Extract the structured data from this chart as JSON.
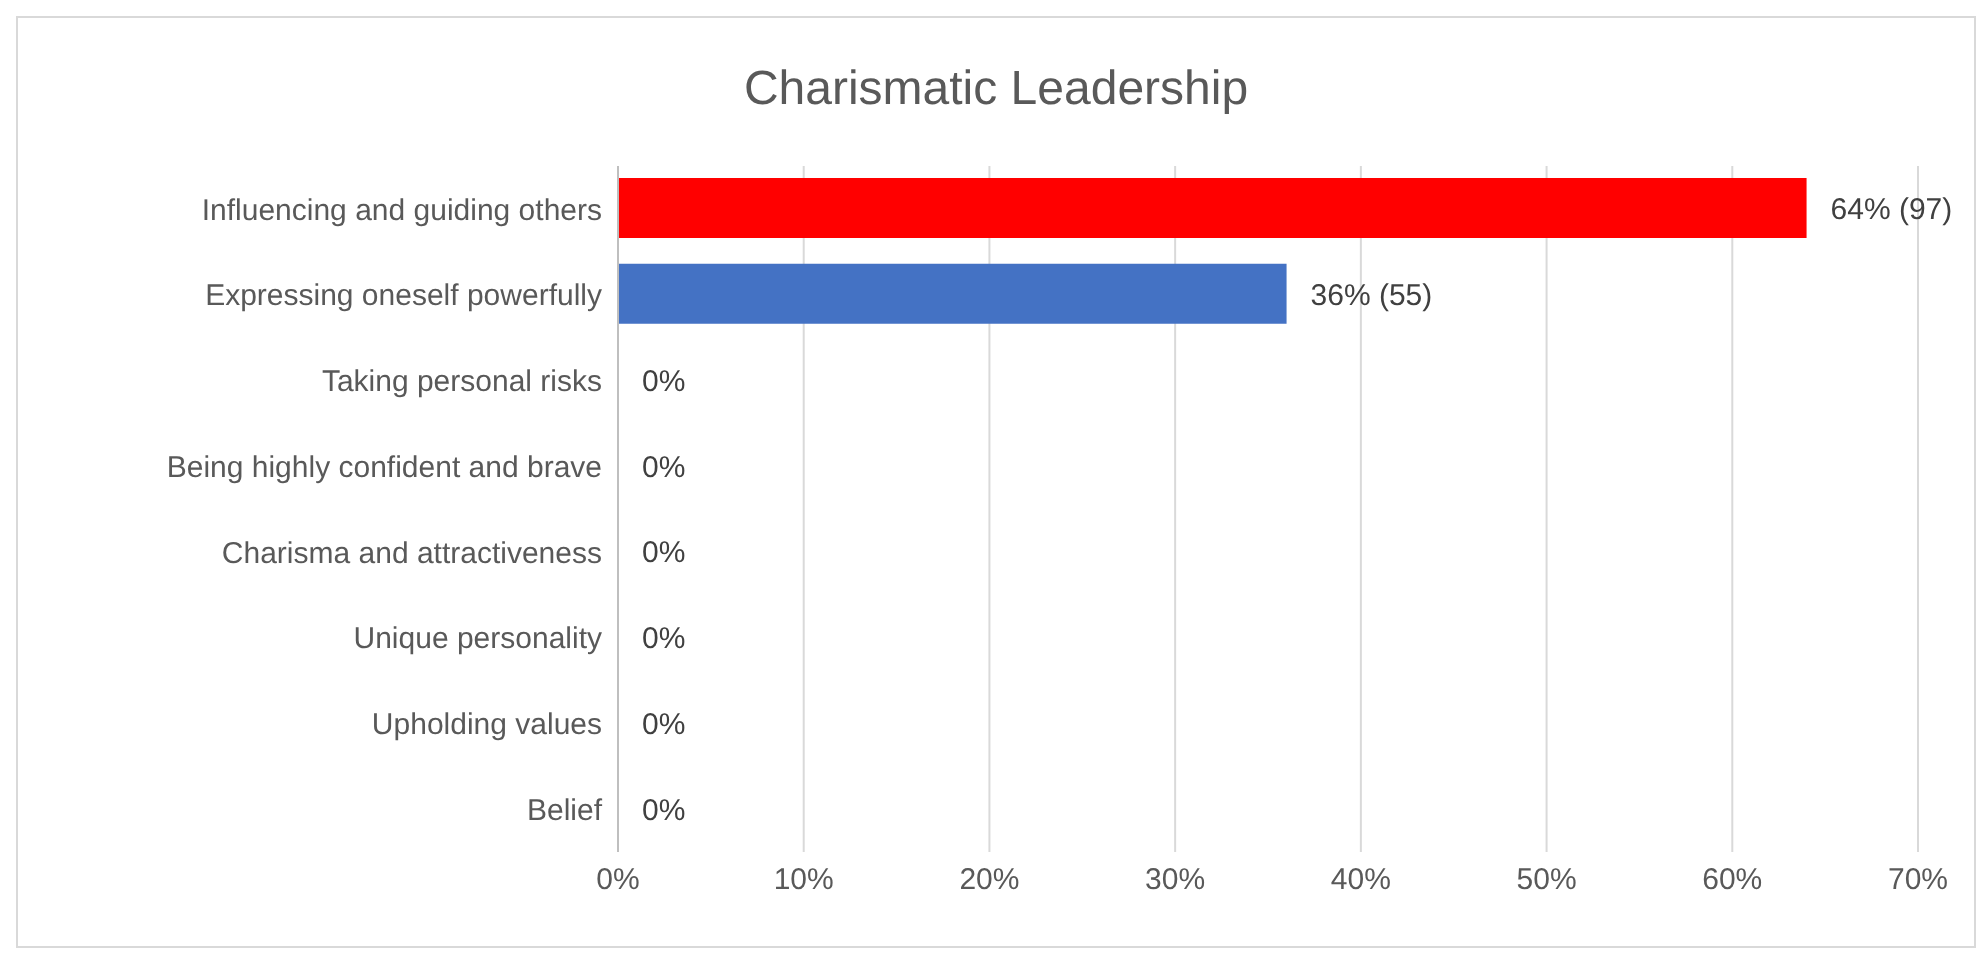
{
  "chart_data": {
    "type": "bar",
    "orientation": "horizontal",
    "title": "Charismatic Leadership",
    "categories": [
      "Influencing and guiding others",
      "Expressing oneself powerfully",
      "Taking personal risks",
      "Being highly confident and brave",
      "Charisma and attractiveness",
      "Unique personality",
      "Upholding values",
      "Belief"
    ],
    "values": [
      64,
      36,
      0,
      0,
      0,
      0,
      0,
      0
    ],
    "colors": [
      "#ff0000",
      "#4472c4",
      "#4472c4",
      "#4472c4",
      "#4472c4",
      "#4472c4",
      "#4472c4",
      "#4472c4"
    ],
    "value_labels": [
      "64% (97)",
      "36% (55)",
      "0%",
      "0%",
      "0%",
      "0%",
      "0%",
      "0%"
    ],
    "xlim": [
      0,
      70
    ],
    "xticks": [
      {
        "value": 0,
        "label": "0%"
      },
      {
        "value": 10,
        "label": "10%"
      },
      {
        "value": 20,
        "label": "20%"
      },
      {
        "value": 30,
        "label": "30%"
      },
      {
        "value": 40,
        "label": "40%"
      },
      {
        "value": 50,
        "label": "50%"
      },
      {
        "value": 60,
        "label": "60%"
      },
      {
        "value": 70,
        "label": "70%"
      }
    ],
    "grid": "x",
    "legend": false
  }
}
